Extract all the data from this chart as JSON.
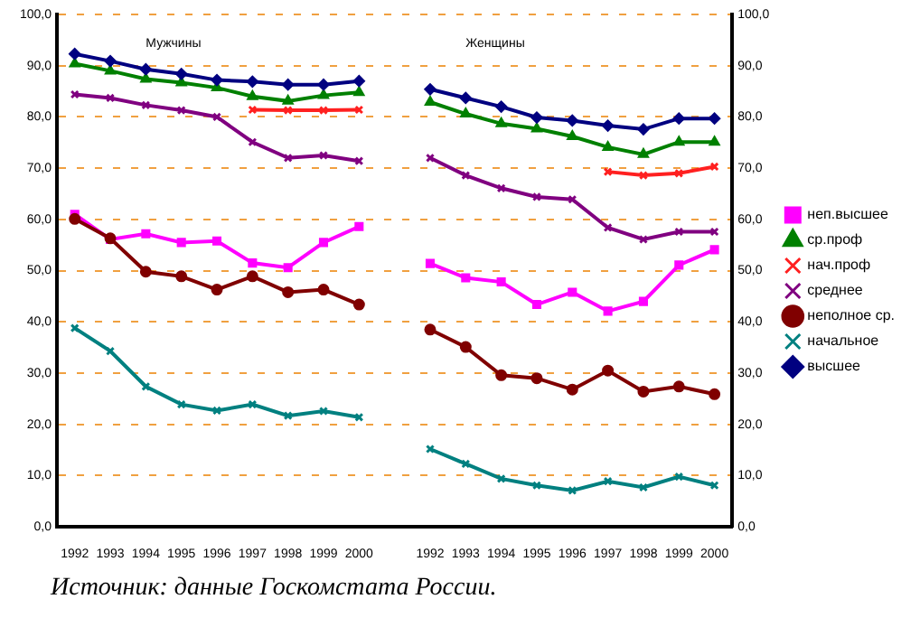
{
  "chart_data": {
    "type": "line",
    "categories": [
      "1992",
      "1993",
      "1994",
      "1995",
      "1996",
      "1997",
      "1998",
      "1999",
      "2000",
      null,
      "1992",
      "1993",
      "1994",
      "1995",
      "1996",
      "1997",
      "1998",
      "1999",
      "2000"
    ],
    "series": [
      {
        "name": "неп.высшее",
        "color": "#ff00ff",
        "marker": "square",
        "values": [
          61.0,
          56.1,
          57.2,
          55.5,
          55.8,
          51.5,
          50.6,
          55.5,
          58.6,
          null,
          51.4,
          48.6,
          47.8,
          43.4,
          45.8,
          42.1,
          44.0,
          51.1,
          54.1
        ]
      },
      {
        "name": "ср.проф",
        "color": "#008000",
        "marker": "triangle",
        "values": [
          90.4,
          89.0,
          87.4,
          86.7,
          85.7,
          84.0,
          83.1,
          84.2,
          84.8,
          null,
          82.9,
          80.6,
          78.7,
          77.7,
          76.2,
          74.1,
          72.7,
          75.1,
          75.1
        ]
      },
      {
        "name": "нач.проф",
        "color": "#ff2020",
        "marker": "cross",
        "values": [
          null,
          null,
          null,
          null,
          null,
          81.4,
          81.3,
          81.3,
          81.4,
          null,
          null,
          null,
          null,
          null,
          null,
          69.3,
          68.6,
          69.0,
          70.3
        ]
      },
      {
        "name": "среднее",
        "color": "#800080",
        "marker": "cross",
        "values": [
          84.4,
          83.7,
          82.3,
          81.3,
          80.0,
          75.1,
          72.0,
          72.5,
          71.4,
          null,
          72.0,
          68.6,
          66.1,
          64.4,
          63.9,
          58.4,
          56.1,
          57.6,
          57.6
        ]
      },
      {
        "name": "неполное ср.",
        "color": "#800000",
        "marker": "circle",
        "values": [
          60.1,
          56.3,
          49.8,
          48.9,
          46.3,
          48.9,
          45.8,
          46.3,
          43.4,
          null,
          38.5,
          35.1,
          29.6,
          29.0,
          26.8,
          30.5,
          26.4,
          27.4,
          25.9
        ]
      },
      {
        "name": "начальное",
        "color": "#008080",
        "marker": "cross",
        "values": [
          38.8,
          34.3,
          27.4,
          23.9,
          22.7,
          23.9,
          21.7,
          22.6,
          21.4,
          null,
          15.2,
          12.3,
          9.4,
          8.1,
          7.1,
          8.9,
          7.7,
          9.8,
          8.1
        ]
      },
      {
        "name": "высшее",
        "color": "#000080",
        "marker": "diamond",
        "values": [
          92.3,
          90.9,
          89.3,
          88.4,
          87.2,
          86.9,
          86.3,
          86.3,
          87.0,
          null,
          85.4,
          83.7,
          82.0,
          79.9,
          79.3,
          78.3,
          77.6,
          79.7,
          79.7
        ]
      }
    ],
    "ylim": [
      0,
      100
    ],
    "yticks": [
      {
        "value": 0,
        "label": "0,0"
      },
      {
        "value": 10,
        "label": "10,0"
      },
      {
        "value": 20,
        "label": "20,0"
      },
      {
        "value": 30,
        "label": "30,0"
      },
      {
        "value": 40,
        "label": "40,0"
      },
      {
        "value": 50,
        "label": "50,0"
      },
      {
        "value": 60,
        "label": "60,0"
      },
      {
        "value": 70,
        "label": "70,0"
      },
      {
        "value": 80,
        "label": "80,0"
      },
      {
        "value": 90,
        "label": "90,0"
      },
      {
        "value": 100,
        "label": "100,0"
      }
    ],
    "y2lim": [
      0,
      100
    ],
    "y2ticks": [
      {
        "value": 0,
        "label": "0,0"
      },
      {
        "value": 10,
        "label": "10,0"
      },
      {
        "value": 20,
        "label": "20,0"
      },
      {
        "value": 30,
        "label": "30,0"
      },
      {
        "value": 40,
        "label": "40,0"
      },
      {
        "value": 50,
        "label": "50,0"
      },
      {
        "value": 60,
        "label": "60,0"
      },
      {
        "value": 70,
        "label": "70,0"
      },
      {
        "value": 80,
        "label": "80,0"
      },
      {
        "value": 90,
        "label": "90,0"
      },
      {
        "value": 100,
        "label": "100,0"
      }
    ],
    "grid": "y",
    "legend": "right",
    "annotations": [
      "Мужчины",
      "Женщины",
      "Источник: данные Госкомстата России."
    ]
  }
}
